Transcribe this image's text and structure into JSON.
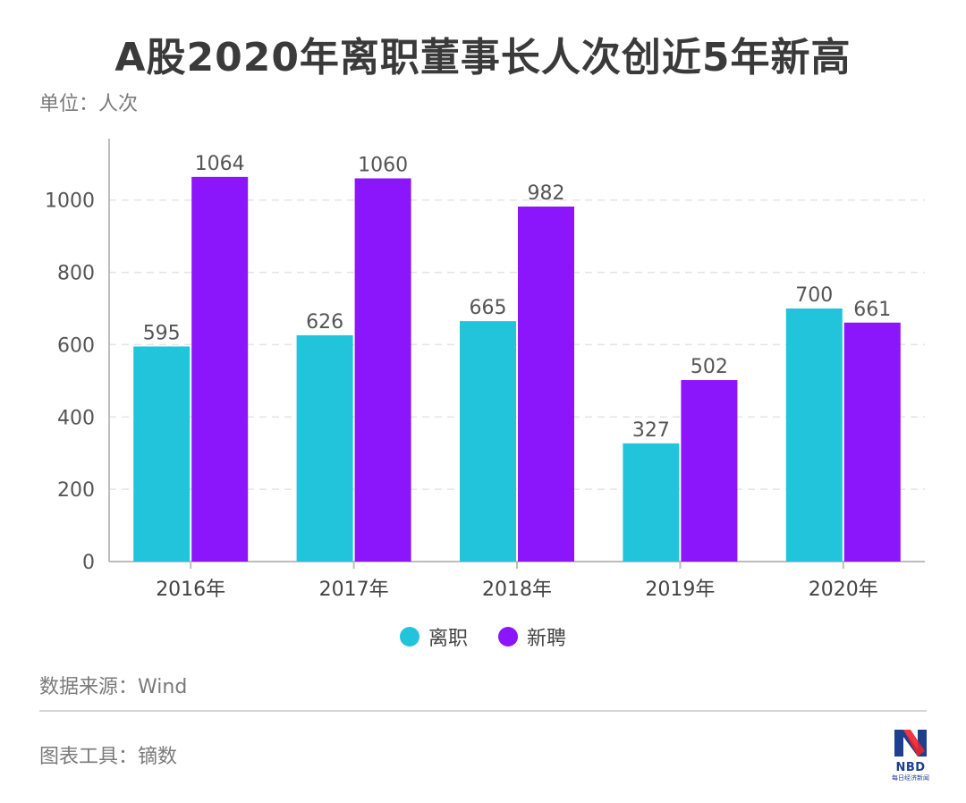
{
  "header": {
    "title": "A股2020年离职董事长人次创近5年新高",
    "unit": "单位：人次"
  },
  "chart_data": {
    "type": "bar",
    "categories": [
      "2016年",
      "2017年",
      "2018年",
      "2019年",
      "2020年"
    ],
    "series": [
      {
        "name": "离职",
        "color": "#22c4dc",
        "values": [
          595,
          626,
          665,
          327,
          700
        ]
      },
      {
        "name": "新聘",
        "color": "#8c16fb",
        "values": [
          1064,
          1060,
          982,
          502,
          661
        ]
      }
    ],
    "ylim": [
      0,
      1170
    ],
    "yticks": [
      0,
      200,
      400,
      600,
      800,
      1000
    ],
    "grid": true,
    "legend_position": "bottom-center"
  },
  "footer": {
    "source": "数据来源：Wind",
    "tool": "图表工具：镝数",
    "logo_text": "NBD",
    "logo_subtext": "每日经济新闻"
  }
}
